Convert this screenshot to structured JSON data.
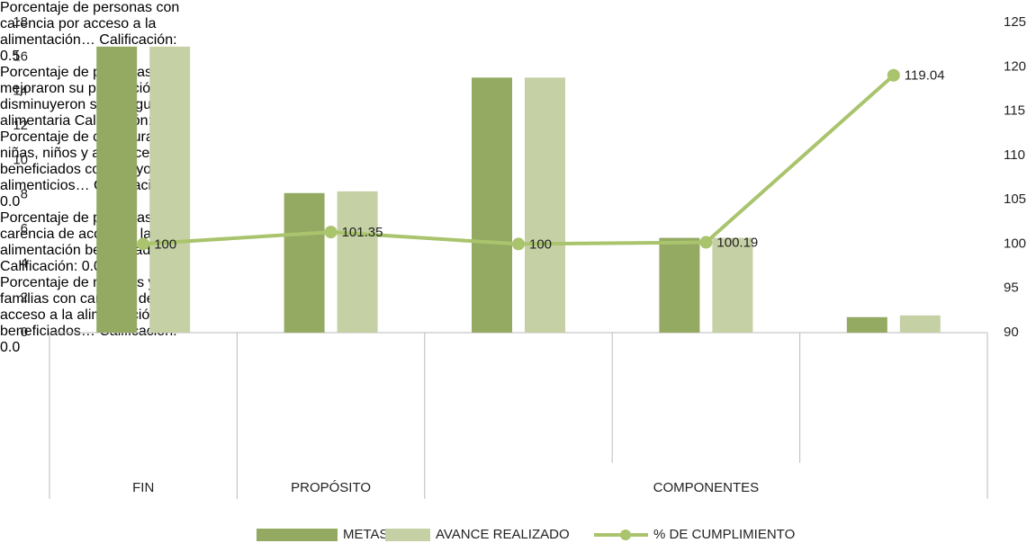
{
  "chart_data": {
    "type": "bar",
    "categories": [
      "Porcentaje de personas con\ncarencia por acceso a la\nalimentación…\nCalificación: 0.5",
      "Porcentaje de personas que\nmejoraron su percepción y\ndisminuyeron su\ninseguridad alimentaria\nCalificación: 0.0",
      "Porcentaje de cobertura de\nniñas, niños y adolescentes\nbeneficiados con apoyos\nalimenticios…\nCalificación: 0.0",
      "Porcentaje de personas con\ncarencia de acceso a la\nalimentación beneficiados\n…\nCalificación: 0.0",
      "Porcentaje de mujeres y sus\nfamilias con carencia de\nacceso a la alimentación\nbeneficiados…\nCalificación: 0.0"
    ],
    "groups": [
      {
        "label": "FIN",
        "span": 1
      },
      {
        "label": "PROPÓSITO",
        "span": 1
      },
      {
        "label": "COMPONENTES",
        "span": 3
      }
    ],
    "series": [
      {
        "name": "METAS",
        "type": "bar",
        "color": "#94aa63",
        "values": [
          16.6,
          8.1,
          14.8,
          5.5,
          0.9
        ]
      },
      {
        "name": "AVANCE REALIZADO",
        "type": "bar",
        "color": "#c5d0a5",
        "values": [
          16.6,
          8.2,
          14.8,
          5.5,
          1.0
        ]
      },
      {
        "name": "% DE CUMPLIMIENTO",
        "type": "line",
        "axis": "y2",
        "color": "#a9c46c",
        "values": [
          100,
          101.35,
          100,
          100.19,
          119.04
        ]
      }
    ],
    "ylim": [
      0,
      18
    ],
    "yticks": [
      0,
      2,
      4,
      6,
      8,
      10,
      12,
      14,
      16,
      18
    ],
    "y2lim": [
      90,
      125
    ],
    "y2ticks": [
      90,
      95,
      100,
      105,
      110,
      115,
      120,
      125
    ],
    "grid": false,
    "legend": "bottom"
  }
}
